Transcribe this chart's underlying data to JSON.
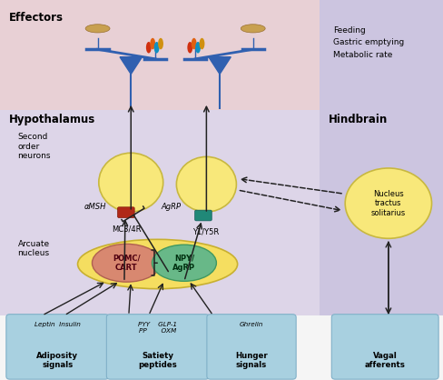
{
  "bg_top": "#e8d0d5",
  "bg_hypo": "#ddd5e8",
  "bg_hind": "#ccc5e0",
  "bg_bot": "#f5f5f5",
  "box_fc": "#a8d0e0",
  "box_ec": "#80b0c8",
  "neuron_fc": "#f8e87a",
  "neuron_ec": "#c8b840",
  "arcuate_fc": "#f5de60",
  "arcuate_ec": "#c8b030",
  "pomc_fc": "#d88870",
  "pomc_ec": "#b06050",
  "npy_fc": "#68b888",
  "npy_ec": "#409860",
  "nts_fc": "#f8e87a",
  "nts_ec": "#c8b840",
  "mc3r_fc": "#b02818",
  "y1r_fc": "#208878",
  "balance_color": "#3060b0",
  "arrow_color": "#222222",
  "title": "Effectors",
  "hypo_label": "Hypothalamus",
  "hind_label": "Hindbrain",
  "second_order": "Second\norder\nneurons",
  "arcuate_label": "Arcuate\nnucleus",
  "mc3r_label": "MC3/4R",
  "y1y5r_label": "Y1/Y5R",
  "agrp_label": "AgRP",
  "amsh_label": "αMSH",
  "pomc_label": "POMC/\nCART",
  "npy_label": "NPY/\nAgRP",
  "nts_label": "Nucleus\ntractus\nsolitarius",
  "feeding_text": "Feeding\nGastric emptying\nMetabolic rate",
  "box1_line1": "Leptin  Insulin",
  "box1_line2": "Adiposity\nsignals",
  "box2_line1": "PYY    GLP-1\nPP       OXM",
  "box2_line2": "Satiety\npeptides",
  "box3_line1": "Ghrelin",
  "box3_line2": "Hunger\nsignals",
  "box4_line2": "Vagal\nafferents"
}
